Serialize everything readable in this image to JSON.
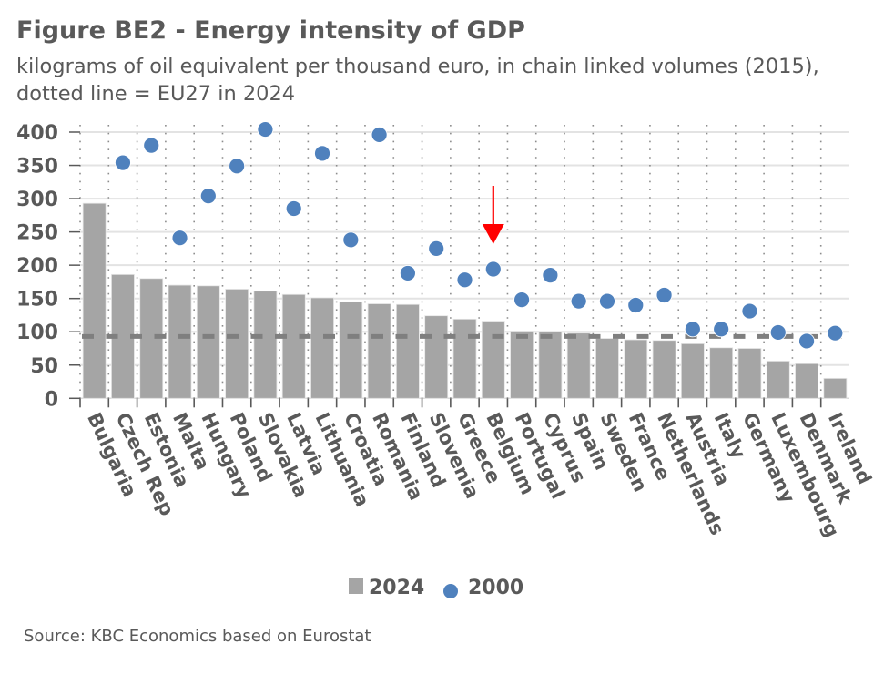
{
  "header": {
    "title": "Figure BE2 - Energy intensity of GDP",
    "subtitle_line1": "kilograms of oil equivalent per thousand euro, in chain linked volumes (2015),",
    "subtitle_line2": "dotted line = EU27 in 2024"
  },
  "footer": {
    "source": "Source: KBC Economics based on Eurostat"
  },
  "colors": {
    "bar_2024": "#a5a5a5",
    "dot_2000": "#4f81bd",
    "eu27_line": "#7f7f7f",
    "arrow": "#ff0000",
    "text": "#595959"
  },
  "chart_data": {
    "type": "bar",
    "title": "Figure BE2 - Energy intensity of GDP",
    "subtitle": "kilograms of oil equivalent per thousand euro, in chain linked volumes (2015), dotted line = EU27 in 2024",
    "xlabel": "",
    "ylabel": "",
    "ylim": [
      0,
      400
    ],
    "yticks": [
      0,
      50,
      100,
      150,
      200,
      250,
      300,
      350,
      400
    ],
    "grid": true,
    "legend_position": "bottom",
    "categories": [
      "Bulgaria",
      "Czech Rep",
      "Estonia",
      "Malta",
      "Hungary",
      "Poland",
      "Slovakia",
      "Latvia",
      "Lithuania",
      "Croatia",
      "Romania",
      "Finland",
      "Slovenia",
      "Greece",
      "Belgium",
      "Portugal",
      "Cyprus",
      "Spain",
      "Sweden",
      "France",
      "Netherlands",
      "Austria",
      "Italy",
      "Germany",
      "Luxembourg",
      "Denmark",
      "Ireland"
    ],
    "series": [
      {
        "name": "2024",
        "type": "bar",
        "values": [
          293,
          186,
          180,
          170,
          169,
          164,
          161,
          156,
          151,
          145,
          142,
          141,
          124,
          119,
          116,
          101,
          100,
          98,
          90,
          88,
          87,
          82,
          76,
          75,
          56,
          52,
          30
        ]
      },
      {
        "name": "2000",
        "type": "scatter",
        "values": [
          null,
          354,
          380,
          241,
          304,
          349,
          404,
          285,
          368,
          238,
          396,
          188,
          225,
          178,
          194,
          148,
          185,
          146,
          146,
          140,
          155,
          104,
          104,
          131,
          99,
          86,
          98
        ]
      }
    ],
    "reference_line": {
      "label": "EU27 in 2024",
      "value": 93,
      "style": "dashed"
    },
    "annotations": [
      {
        "type": "arrow",
        "target_category": "Belgium",
        "direction": "down",
        "color": "#ff0000"
      }
    ],
    "legend": [
      {
        "label": "2024",
        "marker": "square"
      },
      {
        "label": "2000",
        "marker": "circle"
      }
    ]
  }
}
